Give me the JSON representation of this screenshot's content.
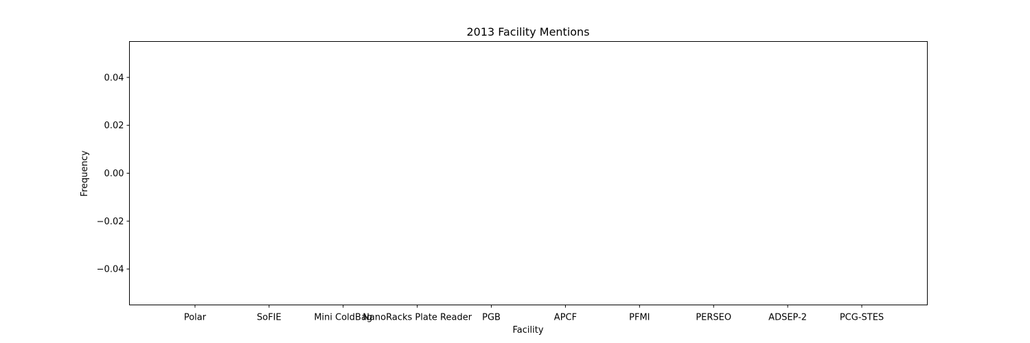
{
  "chart_data": {
    "type": "bar",
    "title": "2013 Facility Mentions",
    "xlabel": "Facility",
    "ylabel": "Frequency",
    "categories": [
      "Polar",
      "SoFIE",
      "Mini ColdBag",
      "NanoRacks Plate Reader",
      "PGB",
      "APCF",
      "PFMI",
      "PERSEO",
      "ADSEP-2",
      "PCG-STES"
    ],
    "values": [
      0,
      0,
      0,
      0,
      0,
      0,
      0,
      0,
      0,
      0
    ],
    "ylim": [
      -0.055,
      0.055
    ],
    "yticks": [
      0.04,
      0.02,
      0.0,
      -0.02,
      -0.04
    ],
    "ytick_labels": [
      "0.04",
      "0.02",
      "0.00",
      "−0.02",
      "−0.04"
    ],
    "grid": false,
    "colors": {
      "bar": "#1f77b4",
      "axes": "#000000",
      "background": "#ffffff"
    }
  }
}
